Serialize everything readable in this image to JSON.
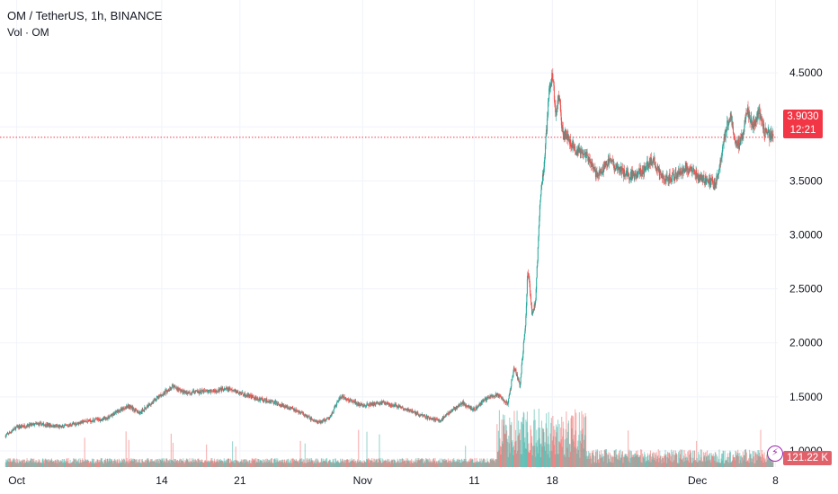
{
  "legend": {
    "title": "OM / TetherUS, 1h, BINANCE",
    "volume": "Vol · OM"
  },
  "price_tag": {
    "price": "3.9030",
    "countdown": "12:21"
  },
  "volume_tag": {
    "value": "121.22 K"
  },
  "colors": {
    "up": "#26a69a",
    "down": "#ef5350",
    "price_line": "#f23645",
    "grid": "#f0f3fa"
  },
  "chart_data": {
    "type": "candlestick",
    "symbol": "OM / TetherUS",
    "interval": "1h",
    "exchange": "BINANCE",
    "x_ticks": [
      "Oct",
      "14",
      "21",
      "Nov",
      "11",
      "18",
      "Dec",
      "8"
    ],
    "x_tick_days": [
      1,
      14,
      21,
      32,
      42,
      49,
      62,
      69
    ],
    "y_ticks": [
      1.0,
      1.5,
      2.0,
      2.5,
      3.0,
      3.5,
      4.0,
      4.5
    ],
    "y_tick_labels": [
      "1.0000",
      "1.5000",
      "2.0000",
      "2.5000",
      "3.0000",
      "3.5000",
      "4.0000",
      "4.5000"
    ],
    "ylim": [
      0.85,
      4.8
    ],
    "xlim_days": [
      -0.5,
      69.2
    ],
    "last_price": 3.903,
    "last_volume": "121.22 K",
    "path": [
      [
        0,
        1.14
      ],
      [
        1,
        1.22
      ],
      [
        3,
        1.25
      ],
      [
        5,
        1.22
      ],
      [
        7,
        1.27
      ],
      [
        9,
        1.3
      ],
      [
        11,
        1.42
      ],
      [
        12,
        1.35
      ],
      [
        13,
        1.44
      ],
      [
        14,
        1.52
      ],
      [
        15,
        1.6
      ],
      [
        16,
        1.54
      ],
      [
        18,
        1.55
      ],
      [
        20,
        1.57
      ],
      [
        22,
        1.5
      ],
      [
        24,
        1.45
      ],
      [
        26,
        1.38
      ],
      [
        28,
        1.26
      ],
      [
        29,
        1.3
      ],
      [
        30,
        1.5
      ],
      [
        32,
        1.42
      ],
      [
        34,
        1.45
      ],
      [
        36,
        1.38
      ],
      [
        38,
        1.3
      ],
      [
        39,
        1.28
      ],
      [
        40,
        1.38
      ],
      [
        41,
        1.44
      ],
      [
        42,
        1.38
      ],
      [
        43,
        1.48
      ],
      [
        44,
        1.52
      ],
      [
        45,
        1.44
      ],
      [
        45.6,
        1.78
      ],
      [
        46.1,
        1.6
      ],
      [
        46.6,
        2.2
      ],
      [
        46.8,
        2.7
      ],
      [
        47.2,
        2.25
      ],
      [
        47.5,
        2.4
      ],
      [
        47.9,
        3.3
      ],
      [
        48.2,
        3.6
      ],
      [
        48.5,
        4.0
      ],
      [
        48.7,
        4.35
      ],
      [
        49.0,
        4.5
      ],
      [
        49.3,
        4.1
      ],
      [
        49.6,
        4.3
      ],
      [
        49.9,
        3.95
      ],
      [
        50.4,
        3.9
      ],
      [
        51,
        3.8
      ],
      [
        52,
        3.75
      ],
      [
        53,
        3.55
      ],
      [
        54,
        3.68
      ],
      [
        55,
        3.6
      ],
      [
        56,
        3.55
      ],
      [
        57,
        3.58
      ],
      [
        58,
        3.7
      ],
      [
        59,
        3.5
      ],
      [
        60,
        3.55
      ],
      [
        61,
        3.62
      ],
      [
        62,
        3.55
      ],
      [
        63,
        3.5
      ],
      [
        63.6,
        3.45
      ],
      [
        64.1,
        3.7
      ],
      [
        64.6,
        4.0
      ],
      [
        65,
        4.1
      ],
      [
        65.5,
        3.82
      ],
      [
        66,
        3.9
      ],
      [
        66.5,
        4.15
      ],
      [
        67,
        4.0
      ],
      [
        67.5,
        4.15
      ],
      [
        68,
        3.95
      ],
      [
        68.8,
        3.9
      ]
    ]
  }
}
